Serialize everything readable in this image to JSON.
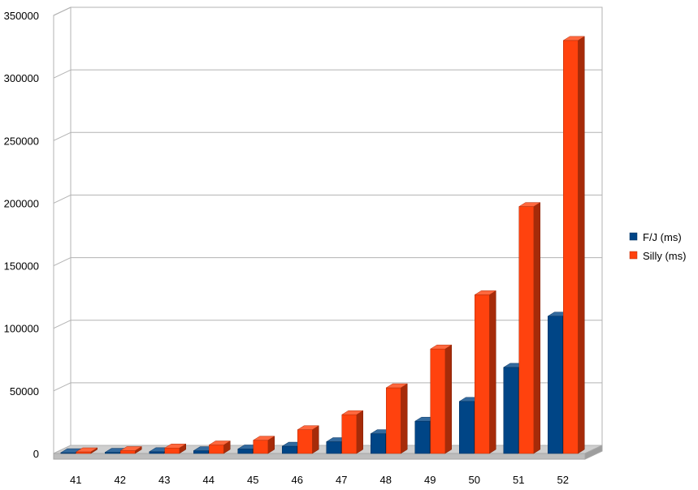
{
  "chart_data": {
    "type": "bar",
    "style": "3d-clustered-column",
    "categories": [
      "41",
      "42",
      "43",
      "44",
      "45",
      "46",
      "47",
      "48",
      "49",
      "50",
      "51",
      "52"
    ],
    "series": [
      {
        "name": "F/J (ms)",
        "color": "#004586",
        "values": [
          600,
          900,
          1400,
          2200,
          3600,
          5800,
          9400,
          15800,
          25800,
          41600,
          68800,
          109700
        ]
      },
      {
        "name": "Silly (ms)",
        "color": "#ff420e",
        "values": [
          1300,
          2300,
          4400,
          6800,
          10600,
          19000,
          31000,
          52500,
          83500,
          126800,
          197300,
          330000
        ]
      }
    ],
    "ylim": [
      0,
      350000
    ],
    "y_ticks": [
      "0",
      "50000",
      "100000",
      "150000",
      "200000",
      "250000",
      "300000",
      "350000"
    ],
    "grid": true,
    "legend_position": "right"
  }
}
